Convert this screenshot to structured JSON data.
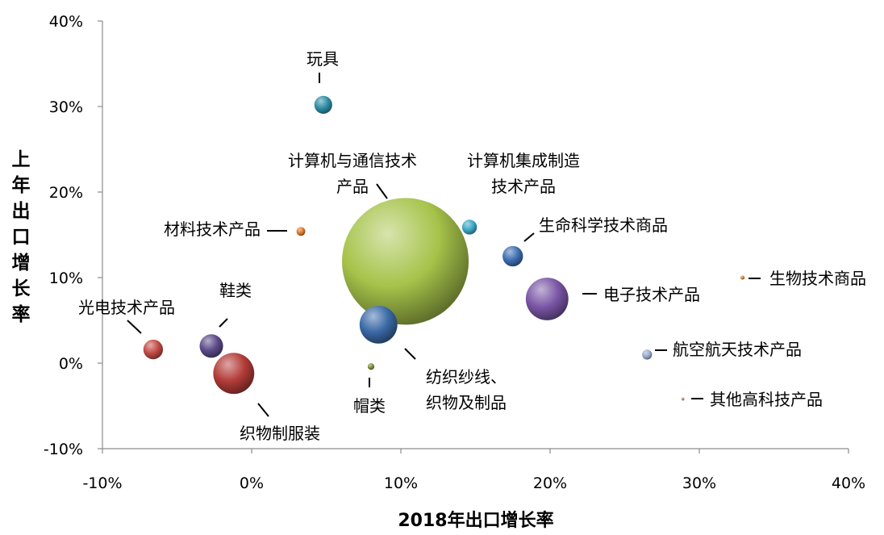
{
  "chart_data": {
    "type": "bubble",
    "title": "",
    "xlabel": "2018年出口增长率",
    "ylabel": "上年出口增长率",
    "xlim": [
      -10,
      40
    ],
    "ylim": [
      -10,
      40
    ],
    "x_tick_labels": [
      "-10%",
      "0%",
      "10%",
      "20%",
      "30%",
      "40%"
    ],
    "y_tick_labels": [
      "-10%",
      "0%",
      "10%",
      "20%",
      "30%",
      "40%"
    ],
    "grid": false,
    "legend": "none",
    "bubble_size_unit": "relative",
    "points": [
      {
        "label": "玩具",
        "x": 4.8,
        "y": 30.2,
        "size": 2.9,
        "color": "#2f8ea6"
      },
      {
        "label": "计算机与通信技术\n产品",
        "x": 10.3,
        "y": 11.9,
        "size": 146,
        "color": "#a6c34a"
      },
      {
        "label": "计算机集成制造\n技术产品",
        "x": 14.6,
        "y": 15.9,
        "size": 2.0,
        "color": "#3aa9c6"
      },
      {
        "label": "材料技术产品",
        "x": 3.3,
        "y": 15.4,
        "size": 0.7,
        "color": "#e07b2a"
      },
      {
        "label": "生命科学技术商品",
        "x": 17.5,
        "y": 12.5,
        "size": 3.8,
        "color": "#3f6fb3"
      },
      {
        "label": "生物技术商品",
        "x": 32.9,
        "y": 10.0,
        "size": 0.15,
        "color": "#e07b2a"
      },
      {
        "label": "电子技术产品",
        "x": 19.8,
        "y": 7.5,
        "size": 16.5,
        "color": "#7a56a6"
      },
      {
        "label": "鞋类",
        "x": -2.7,
        "y": 2.0,
        "size": 5.0,
        "color": "#5c4a8a"
      },
      {
        "label": "光电技术产品",
        "x": -6.6,
        "y": 1.6,
        "size": 3.5,
        "color": "#c24a44"
      },
      {
        "label": "纺织纱线、\n织物及制品",
        "x": 8.5,
        "y": 4.5,
        "size": 13.0,
        "color": "#3b6aa6"
      },
      {
        "label": "航空航天技术产品",
        "x": 26.5,
        "y": 1.0,
        "size": 0.9,
        "color": "#9aaccc"
      },
      {
        "label": "织物制服装",
        "x": -1.2,
        "y": -1.2,
        "size": 15.3,
        "color": "#b23c38"
      },
      {
        "label": "帽类",
        "x": 8.0,
        "y": -0.4,
        "size": 0.4,
        "color": "#7a8f3a"
      },
      {
        "label": "其他高科技产品",
        "x": 28.9,
        "y": -4.2,
        "size": 0.08,
        "color": "#d07f7a"
      }
    ]
  }
}
